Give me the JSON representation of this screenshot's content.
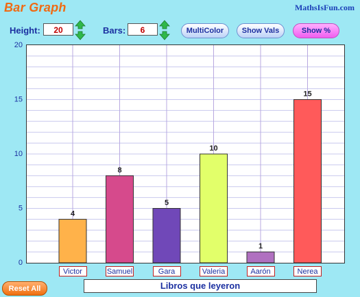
{
  "header": {
    "title": "Bar Graph",
    "brand": "MathsIsFun.com"
  },
  "controls": {
    "height_label": "Height:",
    "height_value": "20",
    "bars_label": "Bars:",
    "bars_value": "6",
    "multicolor_label": "MultiColor",
    "show_vals_label": "Show Vals",
    "show_pct_label": "Show %"
  },
  "footer": {
    "reset_label": "Reset All",
    "x_title": "Libros que leyeron"
  },
  "colors": {
    "background": "#9ee8f4",
    "accent": "#f06a12",
    "text_blue": "#1b2fa0",
    "gridline": "#c8c8ee"
  },
  "chart_data": {
    "type": "bar",
    "categories": [
      "Victor",
      "Samuel",
      "Gara",
      "Valeria",
      "Aarón",
      "Nerea"
    ],
    "values": [
      4,
      8,
      5,
      10,
      1,
      15
    ],
    "colors": [
      "#ffb24a",
      "#d64a8c",
      "#7048b8",
      "#e2ff6a",
      "#b070c0",
      "#ff5a5a"
    ],
    "xlabel": "Libros que leyeron",
    "ylim": [
      0,
      20
    ],
    "yticks": [
      0,
      5,
      10,
      15,
      20
    ],
    "grid": true,
    "show_values": true
  }
}
